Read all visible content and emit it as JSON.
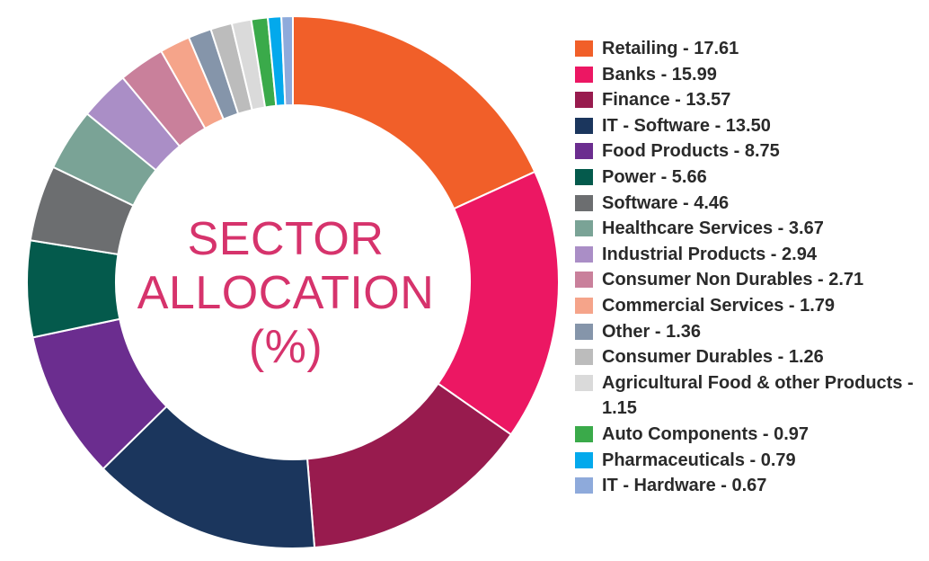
{
  "center_title": {
    "line1": "SECTOR",
    "line2": "ALLOCATION",
    "line3": "(%)"
  },
  "chart_data": {
    "type": "pie",
    "categories": [
      "Retailing",
      "Banks",
      "Finance",
      "IT - Software",
      "Food Products",
      "Power",
      "Software",
      "Healthcare Services",
      "Industrial Products",
      "Consumer Non Durables",
      "Commercial Services",
      "Other",
      "Consumer Durables",
      "Agricultural Food & other Products",
      "Auto Components",
      "Pharmaceuticals",
      "IT - Hardware"
    ],
    "values": [
      17.61,
      15.99,
      13.57,
      13.5,
      8.75,
      5.66,
      4.46,
      3.67,
      2.94,
      2.71,
      1.79,
      1.36,
      1.26,
      1.15,
      0.97,
      0.79,
      0.67
    ],
    "colors": [
      "#f15f29",
      "#ec1763",
      "#981b4e",
      "#1b365d",
      "#6b2d8f",
      "#045a4c",
      "#6c6e70",
      "#7aa396",
      "#aa8ec6",
      "#c9809b",
      "#f5a48a",
      "#8595aa",
      "#bcbcbc",
      "#dadada",
      "#3aaa4a",
      "#03a9ec",
      "#8eaadb"
    ],
    "legend_labels": [
      "Retailing - 17.61",
      "Banks - 15.99",
      "Finance - 13.57",
      "IT - Software - 13.50",
      "Food Products - 8.75",
      "Power - 5.66",
      "Software - 4.46",
      "Healthcare Services - 3.67",
      "Industrial Products - 2.94",
      "Consumer Non Durables - 2.71",
      "Commercial Services - 1.79",
      "Other - 1.36",
      "Consumer Durables - 1.26",
      "Agricultural Food & other Products - 1.15",
      "Auto Components - 0.97",
      "Pharmaceuticals - 0.79",
      "IT - Hardware - 0.67"
    ],
    "donut": true,
    "legend_position": "right"
  }
}
